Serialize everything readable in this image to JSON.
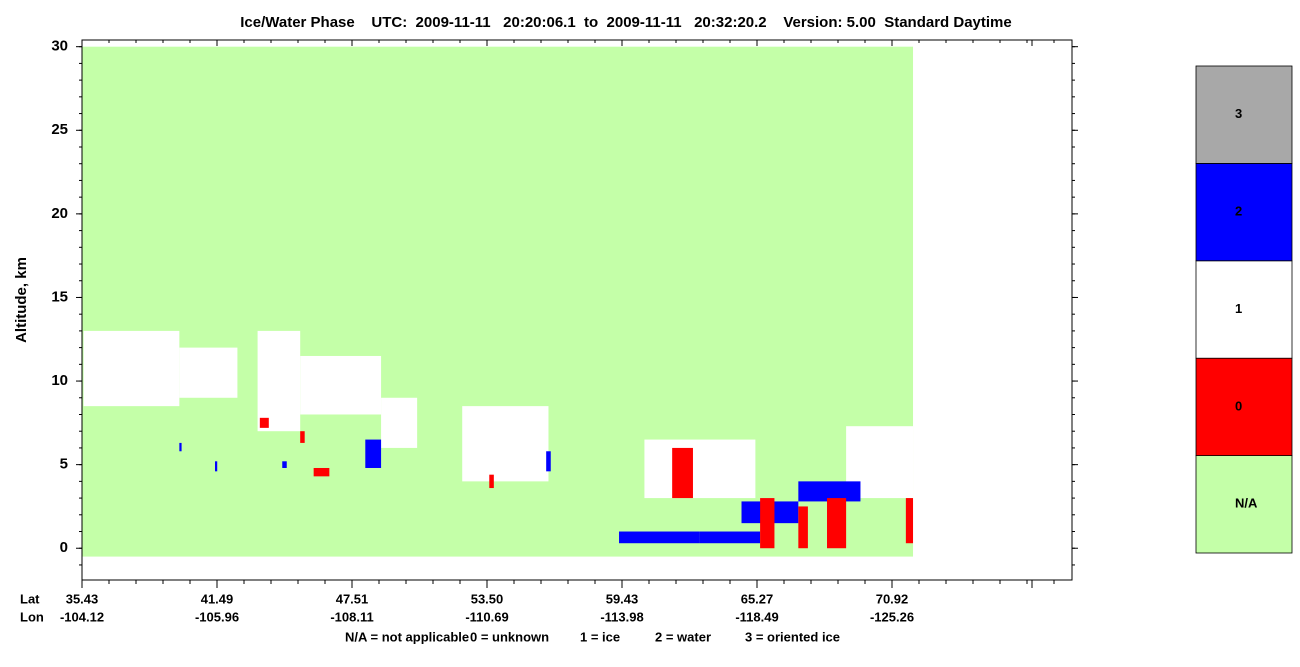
{
  "chart_data": {
    "type": "phase-map",
    "title": "Ice/Water Phase    UTC:  2009-11-11   20:20:06.1  to  2009-11-11   20:32:20.2    Version: 5.00  Standard Daytime",
    "y_label": "Altitude, km",
    "ylim": [
      -1.9,
      30.4
    ],
    "yticks": [
      0,
      5,
      10,
      15,
      20,
      25,
      30
    ],
    "x_row_labels": [
      "Lat",
      "Lon"
    ],
    "lat_ticks": [
      35.43,
      41.49,
      47.51,
      {
        "value": 53.5,
        "label": "53.50"
      },
      59.43,
      65.27,
      70.92
    ],
    "lon_ticks": [
      -104.12,
      -105.96,
      -108.11,
      -110.69,
      -113.98,
      -118.49,
      -125.26
    ],
    "classes": [
      {
        "label": "N/A",
        "color": "#c4ffa8"
      },
      {
        "label": "0",
        "color": "#ff0000"
      },
      {
        "label": "1",
        "color": "#ffffff"
      },
      {
        "label": "2",
        "color": "#0000ff"
      },
      {
        "label": "3",
        "color": "#a8a8a8"
      }
    ],
    "key": [
      "N/A = not applicable",
      "0 = unknown",
      "1 = ice",
      "2 = water",
      "3 = oriented ice"
    ],
    "regions": [
      {
        "lat": [
          35.43,
          71.8
        ],
        "alt": [
          -0.5,
          30
        ],
        "phase": "N/A"
      },
      {
        "lat": [
          35.5,
          39.8
        ],
        "alt": [
          8.5,
          13
        ],
        "phase": "1"
      },
      {
        "lat": [
          39.8,
          42.4
        ],
        "alt": [
          9,
          12
        ],
        "phase": "1"
      },
      {
        "lat": [
          43.3,
          45.2
        ],
        "alt": [
          7,
          13
        ],
        "phase": "1"
      },
      {
        "lat": [
          45.2,
          48.8
        ],
        "alt": [
          8,
          11.5
        ],
        "phase": "1"
      },
      {
        "lat": [
          48.8,
          50.4
        ],
        "alt": [
          6,
          9
        ],
        "phase": "1"
      },
      {
        "lat": [
          52.4,
          56.2
        ],
        "alt": [
          4,
          8.5
        ],
        "phase": "1"
      },
      {
        "lat": [
          60.4,
          65.2
        ],
        "alt": [
          3,
          6.5
        ],
        "phase": "1"
      },
      {
        "lat": [
          69.0,
          71.8
        ],
        "alt": [
          3,
          7.3
        ],
        "phase": "1"
      },
      {
        "lat": [
          59.3,
          62.8
        ],
        "alt": [
          0.3,
          1
        ],
        "phase": "2"
      },
      {
        "lat": [
          62.8,
          65.4
        ],
        "alt": [
          0.3,
          1
        ],
        "phase": "2"
      },
      {
        "lat": [
          64.6,
          67.0
        ],
        "alt": [
          1.5,
          2.8
        ],
        "phase": "2"
      },
      {
        "lat": [
          67.0,
          69.6
        ],
        "alt": [
          2.8,
          4
        ],
        "phase": "2"
      },
      {
        "lat": [
          39.8,
          39.9
        ],
        "alt": [
          5.8,
          6.3
        ],
        "phase": "2"
      },
      {
        "lat": [
          41.4,
          41.5
        ],
        "alt": [
          4.6,
          5.2
        ],
        "phase": "2"
      },
      {
        "lat": [
          44.4,
          44.6
        ],
        "alt": [
          4.8,
          5.2
        ],
        "phase": "2"
      },
      {
        "lat": [
          48.1,
          48.8
        ],
        "alt": [
          4.8,
          6.5
        ],
        "phase": "2"
      },
      {
        "lat": [
          56.1,
          56.3
        ],
        "alt": [
          4.6,
          5.8
        ],
        "phase": "2"
      },
      {
        "lat": [
          61.6,
          62.5
        ],
        "alt": [
          3,
          6
        ],
        "phase": "0"
      },
      {
        "lat": [
          65.4,
          66.0
        ],
        "alt": [
          0,
          3
        ],
        "phase": "0"
      },
      {
        "lat": [
          67.0,
          67.4
        ],
        "alt": [
          0,
          2.5
        ],
        "phase": "0"
      },
      {
        "lat": [
          68.2,
          69.0
        ],
        "alt": [
          0,
          3
        ],
        "phase": "0"
      },
      {
        "lat": [
          71.5,
          71.8
        ],
        "alt": [
          0.3,
          3
        ],
        "phase": "0"
      },
      {
        "lat": [
          43.4,
          43.8
        ],
        "alt": [
          7.2,
          7.8
        ],
        "phase": "0"
      },
      {
        "lat": [
          45.2,
          45.4
        ],
        "alt": [
          6.3,
          7
        ],
        "phase": "0"
      },
      {
        "lat": [
          45.8,
          46.5
        ],
        "alt": [
          4.3,
          4.8
        ],
        "phase": "0"
      },
      {
        "lat": [
          53.6,
          53.8
        ],
        "alt": [
          3.6,
          4.4
        ],
        "phase": "0"
      }
    ]
  }
}
